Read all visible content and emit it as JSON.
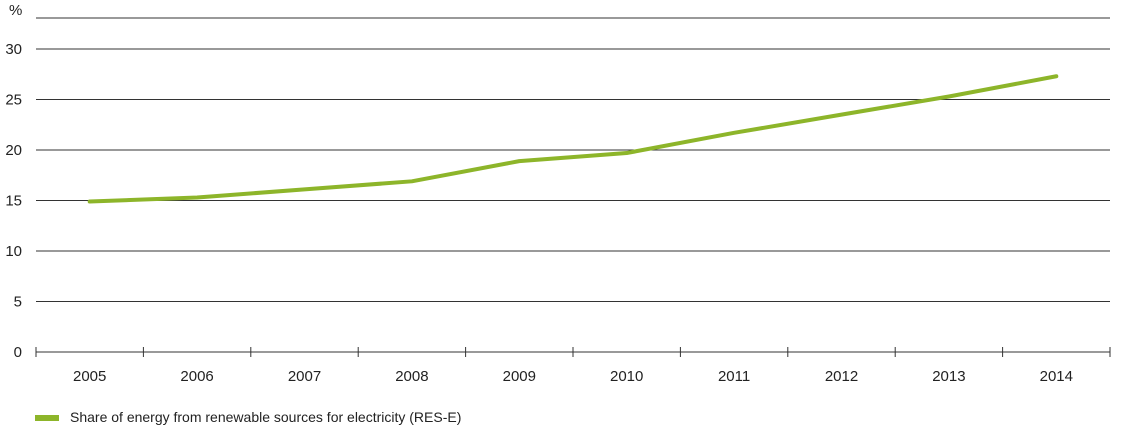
{
  "chart_data": {
    "type": "line",
    "title": "",
    "xlabel": "",
    "ylabel": "%",
    "ylim": [
      0,
      30
    ],
    "yticks": [
      0,
      5,
      10,
      15,
      20,
      25,
      30
    ],
    "grid": true,
    "legend_position": "bottom-left",
    "categories": [
      "2005",
      "2006",
      "2007",
      "2008",
      "2009",
      "2010",
      "2011",
      "2012",
      "2013",
      "2014"
    ],
    "series": [
      {
        "name": "Share of energy from renewable sources for electricity (RES-E)",
        "color": "#8db52a",
        "values": [
          14.9,
          15.3,
          16.1,
          16.9,
          18.9,
          19.7,
          21.7,
          23.5,
          25.3,
          27.3
        ]
      }
    ]
  }
}
